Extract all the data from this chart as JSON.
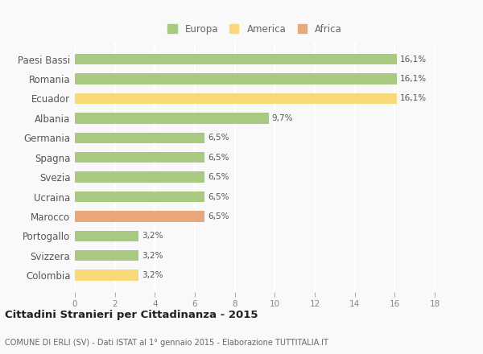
{
  "categories": [
    "Paesi Bassi",
    "Romania",
    "Ecuador",
    "Albania",
    "Germania",
    "Spagna",
    "Svezia",
    "Ucraina",
    "Marocco",
    "Portogallo",
    "Svizzera",
    "Colombia"
  ],
  "values": [
    16.1,
    16.1,
    16.1,
    9.7,
    6.5,
    6.5,
    6.5,
    6.5,
    6.5,
    3.2,
    3.2,
    3.2
  ],
  "labels": [
    "16,1%",
    "16,1%",
    "16,1%",
    "9,7%",
    "6,5%",
    "6,5%",
    "6,5%",
    "6,5%",
    "6,5%",
    "3,2%",
    "3,2%",
    "3,2%"
  ],
  "continent": [
    "Europa",
    "Europa",
    "America",
    "Europa",
    "Europa",
    "Europa",
    "Europa",
    "Europa",
    "Africa",
    "Europa",
    "Europa",
    "America"
  ],
  "colors": {
    "Europa": "#a8c97f",
    "America": "#f9d87a",
    "Africa": "#e8a87c"
  },
  "title": "Cittadini Stranieri per Cittadinanza - 2015",
  "subtitle": "COMUNE DI ERLI (SV) - Dati ISTAT al 1° gennaio 2015 - Elaborazione TUTTITALIA.IT",
  "xlim": [
    0,
    18
  ],
  "xticks": [
    0,
    2,
    4,
    6,
    8,
    10,
    12,
    14,
    16,
    18
  ],
  "bg_color": "#f9f9f9",
  "grid_color": "#ffffff",
  "bar_height": 0.55,
  "label_fontsize": 7.5,
  "ytick_fontsize": 8.5,
  "xtick_fontsize": 7.5,
  "title_fontsize": 9.5,
  "subtitle_fontsize": 7,
  "legend_fontsize": 8.5
}
